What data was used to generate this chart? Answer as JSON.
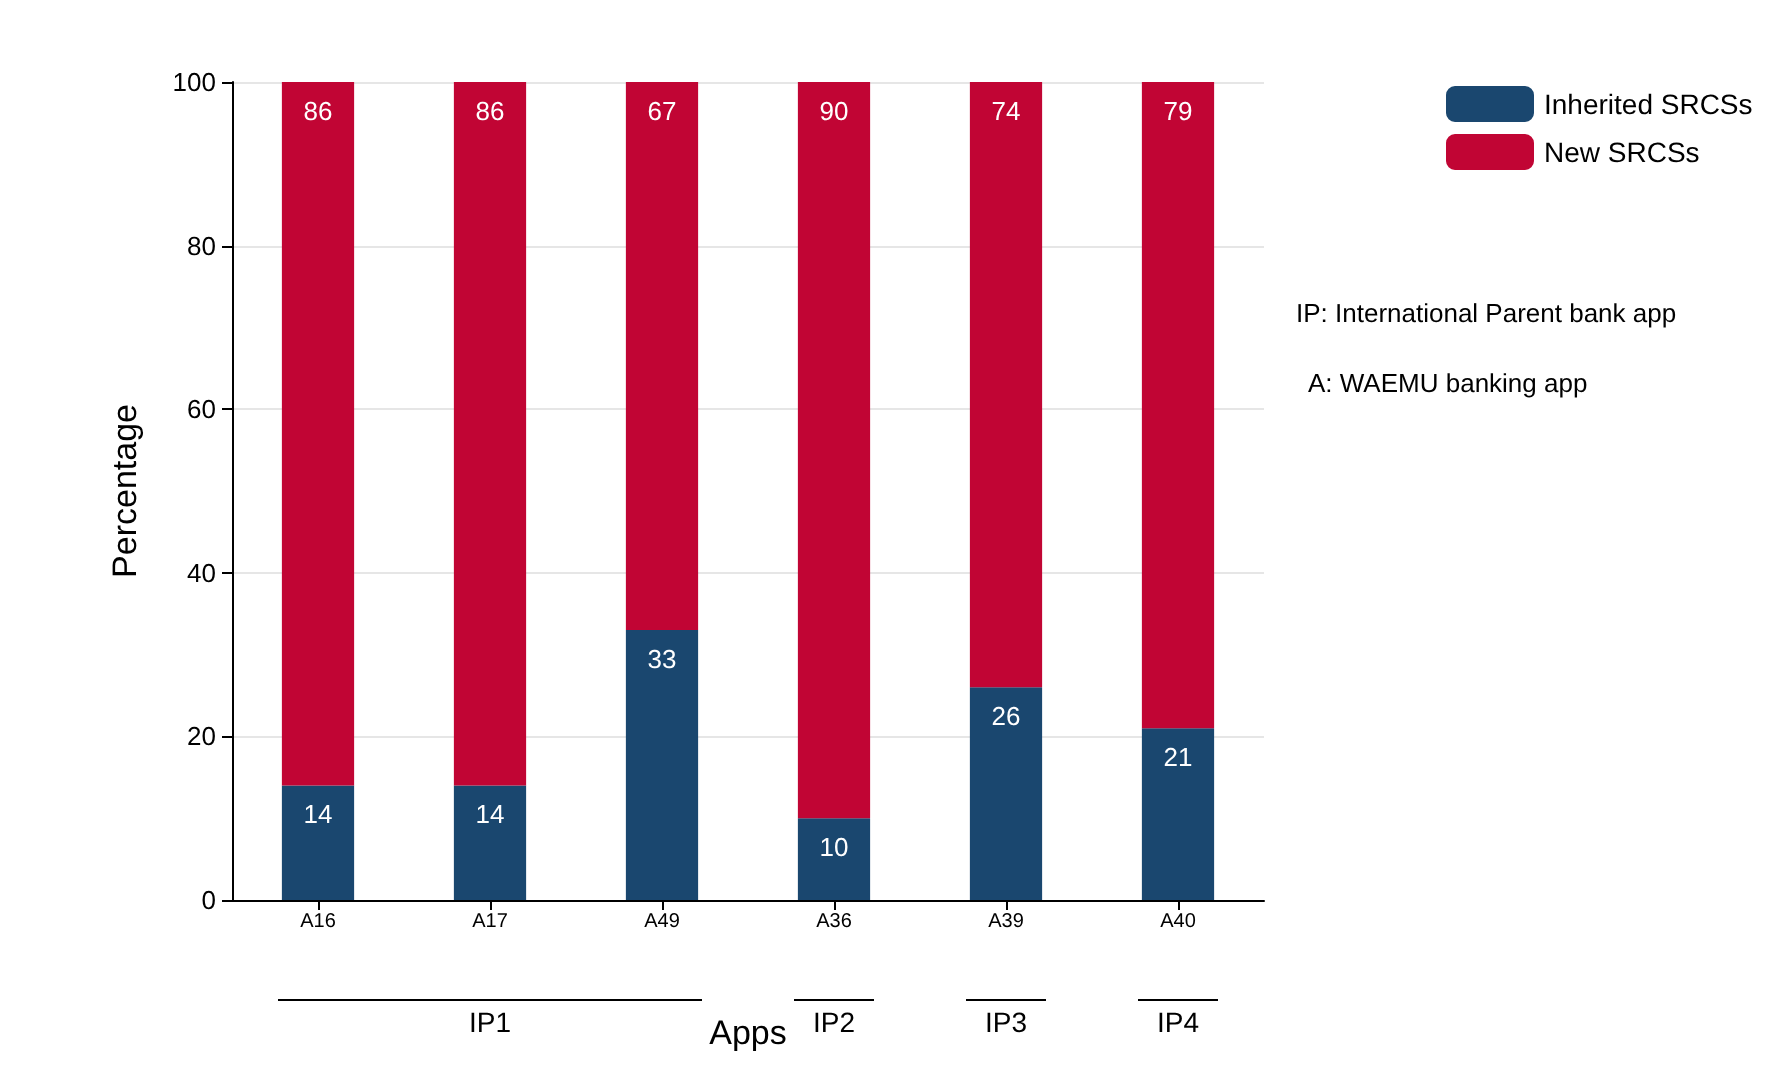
{
  "chart_data": {
    "type": "bar",
    "stacked": true,
    "xlabel": "Apps",
    "ylabel": "Percentage",
    "categories": [
      "A16",
      "A17",
      "A49",
      "A36",
      "A39",
      "A40"
    ],
    "series": [
      {
        "name": "Inherited SRCSs",
        "color": "#1a476f",
        "values": [
          14,
          14,
          33,
          10,
          26,
          21
        ]
      },
      {
        "name": "New SRCSs",
        "color": "#c10534",
        "values": [
          86,
          86,
          67,
          90,
          74,
          79
        ]
      }
    ],
    "ylim": [
      0,
      100
    ],
    "yticks": [
      0,
      20,
      40,
      60,
      80,
      100
    ],
    "grid": "y",
    "legend": "top right",
    "data_labels": true,
    "annotations": [
      "IP1",
      "IP2",
      "IP3",
      "IP4",
      "IP: International Parent bank app",
      "A: WAEMU banking app"
    ]
  }
}
